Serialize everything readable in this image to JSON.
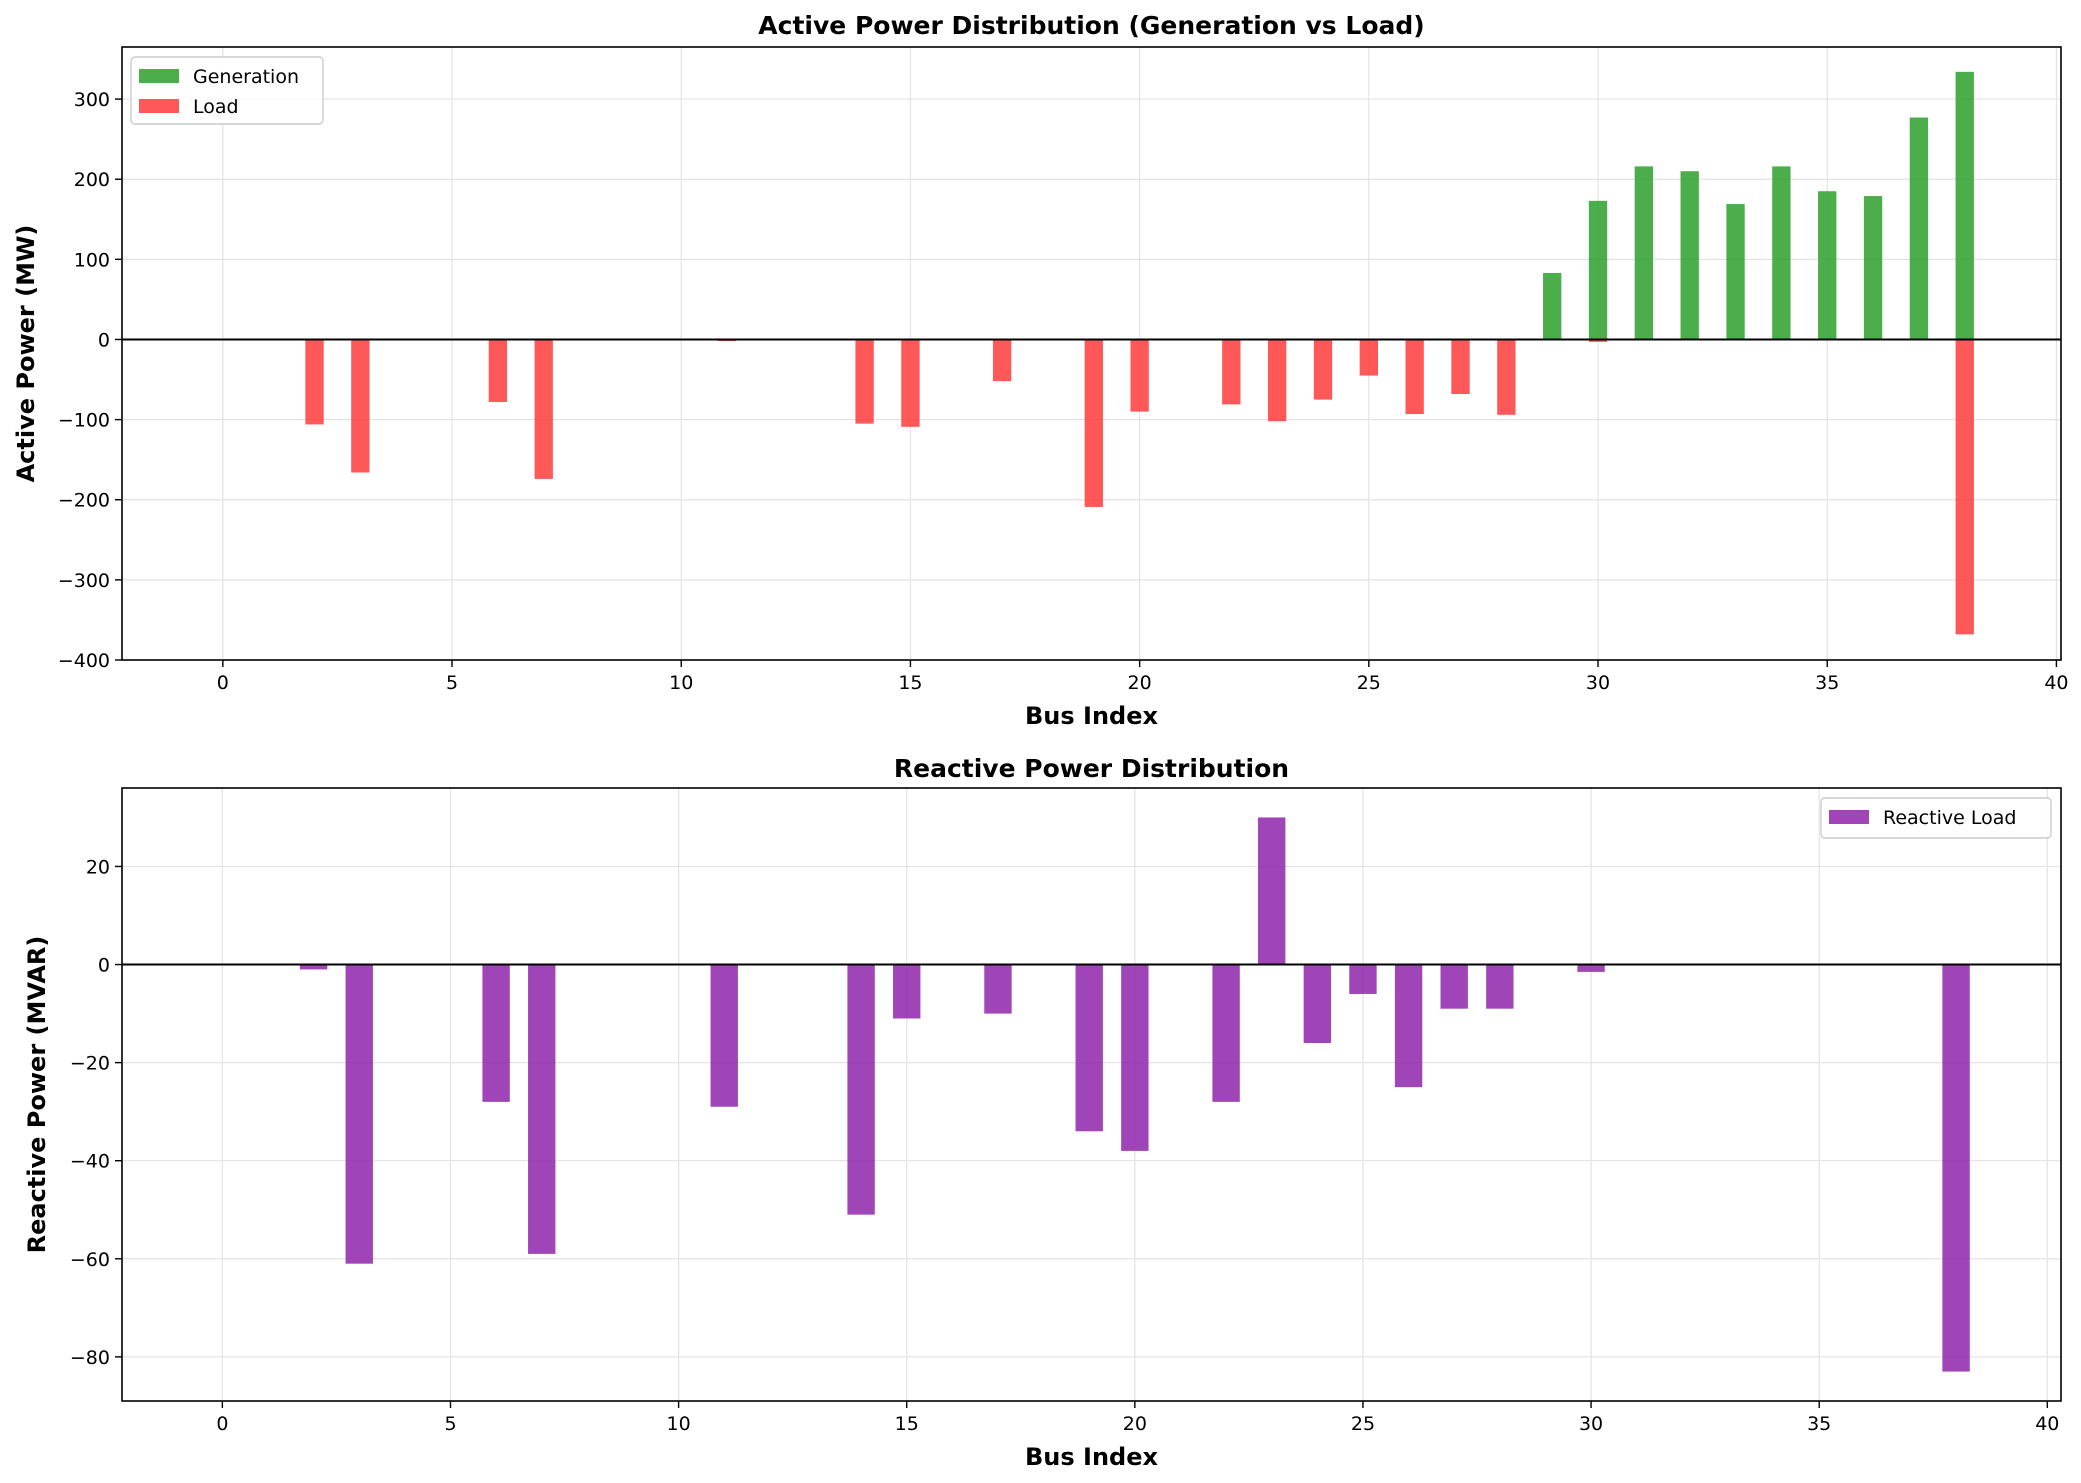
{
  "chart_data": [
    {
      "type": "bar",
      "title": "Active Power Distribution (Generation vs Load)",
      "xlabel": "Bus Index",
      "ylabel": "Active Power (MW)",
      "xlim": [
        -2.2,
        40.1
      ],
      "ylim": [
        -400,
        365
      ],
      "xticks": [
        0,
        5,
        10,
        15,
        20,
        25,
        30,
        35,
        40
      ],
      "yticks": [
        -400,
        -300,
        -200,
        -100,
        0,
        100,
        200,
        300
      ],
      "tick_label_minus": "−",
      "grid": true,
      "legend_position": "top-left",
      "bar_width": 0.4,
      "series": [
        {
          "name": "Generation",
          "color": "#2ca02c",
          "points": [
            [
              29,
              83
            ],
            [
              30,
              173
            ],
            [
              31,
              216
            ],
            [
              32,
              210
            ],
            [
              33,
              169
            ],
            [
              34,
              216
            ],
            [
              35,
              185
            ],
            [
              36,
              179
            ],
            [
              37,
              277
            ],
            [
              38,
              334
            ]
          ]
        },
        {
          "name": "Load",
          "color": "#ff3b3b",
          "points": [
            [
              2,
              -106
            ],
            [
              3,
              -166
            ],
            [
              6,
              -78
            ],
            [
              7,
              -174
            ],
            [
              11,
              -2
            ],
            [
              14,
              -105
            ],
            [
              15,
              -109
            ],
            [
              17,
              -52
            ],
            [
              19,
              -209
            ],
            [
              20,
              -90
            ],
            [
              22,
              -81
            ],
            [
              23,
              -102
            ],
            [
              24,
              -75
            ],
            [
              25,
              -45
            ],
            [
              26,
              -93
            ],
            [
              27,
              -68
            ],
            [
              28,
              -94
            ],
            [
              30,
              -3
            ],
            [
              38,
              -368
            ]
          ]
        }
      ]
    },
    {
      "type": "bar",
      "title": "Reactive Power Distribution",
      "xlabel": "Bus Index",
      "ylabel": "Reactive Power (MVAR)",
      "xlim": [
        -2.2,
        40.3
      ],
      "ylim": [
        -89,
        36
      ],
      "xticks": [
        0,
        5,
        10,
        15,
        20,
        25,
        30,
        35,
        40
      ],
      "yticks": [
        -80,
        -60,
        -40,
        -20,
        0,
        20
      ],
      "tick_label_minus": "−",
      "grid": true,
      "legend_position": "top-right",
      "bar_width": 0.6,
      "series": [
        {
          "name": "Reactive Load",
          "color": "#8e24aa",
          "points": [
            [
              2,
              -1
            ],
            [
              3,
              -61
            ],
            [
              6,
              -28
            ],
            [
              7,
              -59
            ],
            [
              11,
              -29
            ],
            [
              14,
              -51
            ],
            [
              15,
              -11
            ],
            [
              17,
              -10
            ],
            [
              19,
              -34
            ],
            [
              20,
              -38
            ],
            [
              22,
              -28
            ],
            [
              23,
              30
            ],
            [
              24,
              -16
            ],
            [
              25,
              -6
            ],
            [
              26,
              -25
            ],
            [
              27,
              -9
            ],
            [
              28,
              -9
            ],
            [
              30,
              -1.5
            ],
            [
              38,
              -83
            ]
          ]
        }
      ]
    }
  ]
}
